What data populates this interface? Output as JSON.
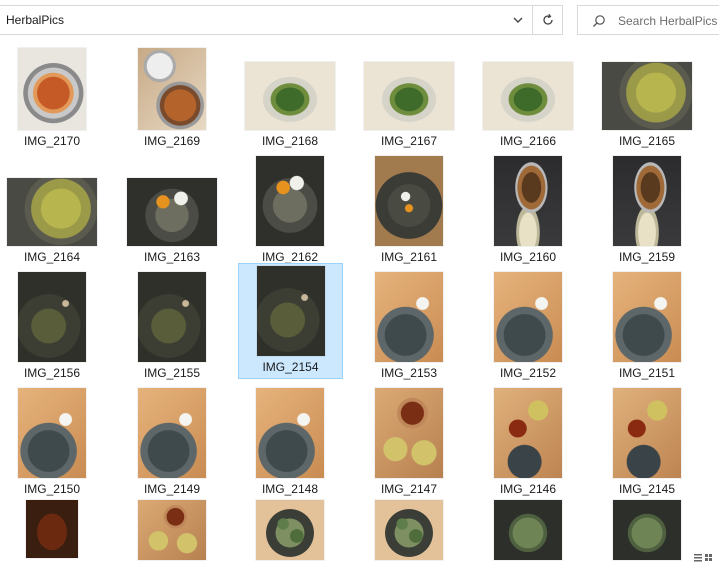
{
  "window": {
    "path": "HerbalPics",
    "search_placeholder": "Search HerbalPics"
  },
  "icons": {
    "dropdown": "chevron-down-icon",
    "refresh": "refresh-icon",
    "search": "search-icon",
    "view": "details-view-icon"
  },
  "colors": {
    "selection_bg": "#cce8ff",
    "selection_border": "#99d1ff"
  },
  "selected_file": "IMG_2154",
  "files": [
    {
      "name": "IMG_2170"
    },
    {
      "name": "IMG_2169"
    },
    {
      "name": "IMG_2168"
    },
    {
      "name": "IMG_2167"
    },
    {
      "name": "IMG_2166"
    },
    {
      "name": "IMG_2165"
    },
    {
      "name": "IMG_2164"
    },
    {
      "name": "IMG_2163"
    },
    {
      "name": "IMG_2162"
    },
    {
      "name": "IMG_2161"
    },
    {
      "name": "IMG_2160"
    },
    {
      "name": "IMG_2159"
    },
    {
      "name": "IMG_2156"
    },
    {
      "name": "IMG_2155"
    },
    {
      "name": "IMG_2154"
    },
    {
      "name": "IMG_2153"
    },
    {
      "name": "IMG_2152"
    },
    {
      "name": "IMG_2151"
    },
    {
      "name": "IMG_2150"
    },
    {
      "name": "IMG_2149"
    },
    {
      "name": "IMG_2148"
    },
    {
      "name": "IMG_2147"
    },
    {
      "name": "IMG_2146"
    },
    {
      "name": "IMG_2145"
    },
    {
      "name": ""
    },
    {
      "name": ""
    },
    {
      "name": ""
    },
    {
      "name": ""
    },
    {
      "name": ""
    },
    {
      "name": ""
    }
  ]
}
